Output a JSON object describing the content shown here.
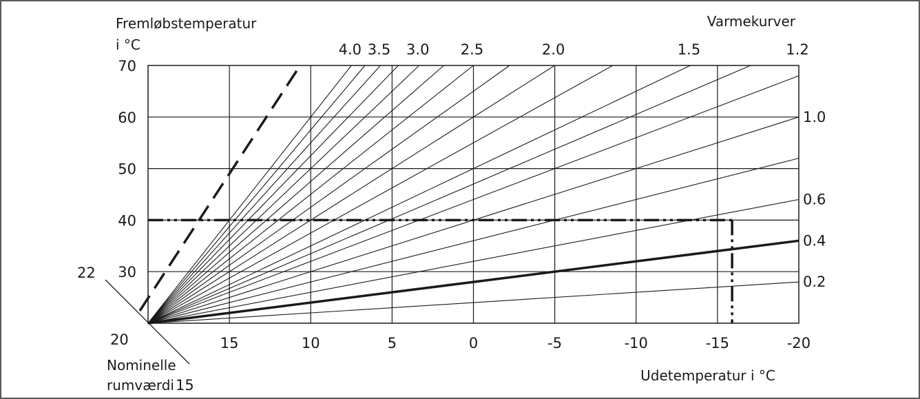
{
  "chart_data": {
    "type": "line",
    "title": "",
    "ylabel_line1": "Fremløbstemperatur",
    "ylabel_line2": "i °C",
    "xlabel": "Udetemperatur i °C",
    "curves_label": "Varmekurver",
    "room_label_line1": "Nominelle",
    "room_label_line2": "rumværdi",
    "xlim": [
      20,
      -20
    ],
    "ylim": [
      20,
      70
    ],
    "x_ticks": [
      15,
      10,
      5,
      0,
      -5,
      -10,
      -15,
      -20
    ],
    "x_tick_labels": [
      "15",
      "10",
      "5",
      "0",
      "-5",
      "-10",
      "-15",
      "-20"
    ],
    "y_ticks": [
      30,
      40,
      50,
      60,
      70
    ],
    "y_tick_labels": [
      "30",
      "40",
      "50",
      "60",
      "70"
    ],
    "room_ticks": [
      "22",
      "20",
      "15"
    ],
    "grid": true,
    "origin": {
      "x": 20,
      "y": 20
    },
    "series": [
      {
        "name": "4.0",
        "slope": 4.0,
        "label_pos": "top"
      },
      {
        "slope": 3.75
      },
      {
        "name": "3.5",
        "slope": 3.5,
        "label_pos": "top"
      },
      {
        "slope": 3.25
      },
      {
        "name": "3.0",
        "slope": 3.0,
        "label_pos": "top"
      },
      {
        "slope": 2.75
      },
      {
        "name": "2.5",
        "slope": 2.5,
        "label_pos": "top"
      },
      {
        "slope": 2.25
      },
      {
        "name": "2.0",
        "slope": 2.0,
        "label_pos": "top"
      },
      {
        "slope": 1.75
      },
      {
        "name": "1.5",
        "slope": 1.5,
        "label_pos": "top"
      },
      {
        "slope": 1.35
      },
      {
        "name": "1.2",
        "slope": 1.2,
        "label_pos": "top"
      },
      {
        "name": "1.0",
        "slope": 1.0,
        "label_pos": "right"
      },
      {
        "slope": 0.8
      },
      {
        "name": "0.6",
        "slope": 0.6,
        "label_pos": "right"
      },
      {
        "name": "0.4",
        "slope": 0.4,
        "label_pos": "right",
        "highlight": true
      },
      {
        "name": "0.2",
        "slope": 0.2,
        "label_pos": "right"
      }
    ],
    "dashed_curve": {
      "slope": 6.0
    },
    "reference_line": {
      "flow_temp": 40,
      "outdoor_temp": -15.9
    }
  }
}
